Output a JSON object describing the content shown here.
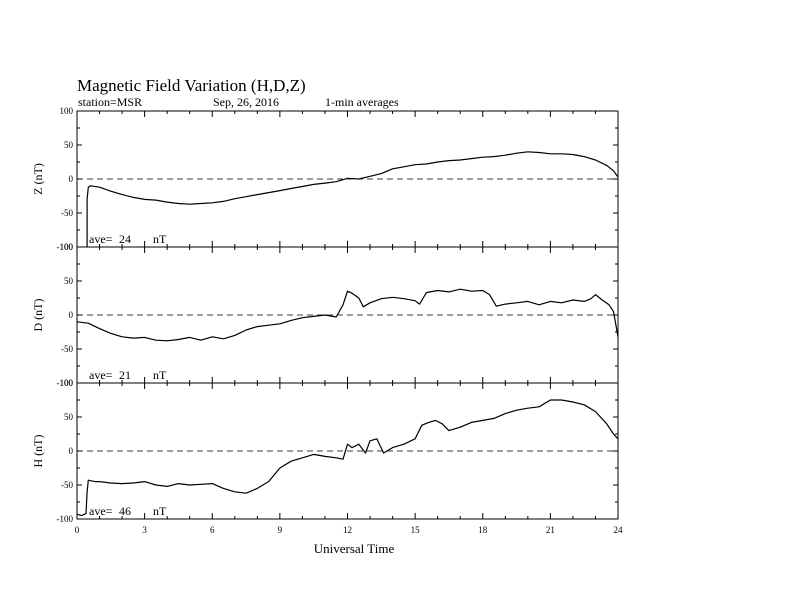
{
  "header": {
    "title": "Magnetic Field Variation (H,D,Z)",
    "station": "station=MSR",
    "date": "Sep, 26, 2016",
    "averaging": "1-min averages"
  },
  "colors": {
    "line": "#000000",
    "background": "#ffffff"
  },
  "chart_data": {
    "type": "line",
    "xlabel": "Universal Time",
    "xlim": [
      0,
      24
    ],
    "xticks": [
      "0",
      "3",
      "6",
      "9",
      "12",
      "15",
      "18",
      "21",
      "24"
    ],
    "panels": [
      {
        "ylabel": "Z (nT)",
        "ylim": [
          -100,
          100
        ],
        "yticks": [
          "100",
          "50",
          "0",
          "-50",
          "-100"
        ],
        "ave_text": "ave=",
        "ave_value": "24",
        "ave_unit": "nT",
        "zero_line": "dashed",
        "x": [
          0.45,
          0.45,
          0.5,
          0.6,
          1,
          1.5,
          2,
          2.5,
          3,
          3.5,
          4,
          4.5,
          5,
          5.5,
          6,
          6.5,
          7,
          7.5,
          8,
          8.5,
          9,
          9.5,
          10,
          10.5,
          11,
          11.5,
          12,
          12.5,
          13,
          13.5,
          14,
          14.5,
          15,
          15.5,
          16,
          16.5,
          17,
          17.5,
          18,
          18.5,
          19,
          19.5,
          20,
          20.5,
          21,
          21.5,
          22,
          22.5,
          23,
          23.5,
          23.8,
          24
        ],
        "y": [
          -100,
          -30,
          -12,
          -10,
          -12,
          -18,
          -23,
          -27,
          -30,
          -31,
          -34,
          -36,
          -37,
          -36,
          -35,
          -33,
          -29,
          -26,
          -23,
          -20,
          -17,
          -14,
          -11,
          -8,
          -6,
          -4,
          1,
          0,
          4,
          8,
          15,
          18,
          21,
          22,
          25,
          27,
          28,
          30,
          32,
          33,
          35,
          38,
          40,
          39,
          37,
          37,
          36,
          33,
          28,
          20,
          12,
          3
        ]
      },
      {
        "ylabel": "D (nT)",
        "ylim": [
          -100,
          100
        ],
        "yticks": [
          "100",
          "50",
          "0",
          "-50",
          "-100"
        ],
        "ave_text": "ave=",
        "ave_value": "21",
        "ave_unit": "nT",
        "zero_line": "dashed",
        "x": [
          0,
          0.5,
          1,
          1.5,
          2,
          2.5,
          3,
          3.5,
          4,
          4.5,
          5,
          5.5,
          6,
          6.5,
          7,
          7.5,
          8,
          8.5,
          9,
          9.5,
          10,
          10.5,
          11,
          11.5,
          11.8,
          12,
          12.2,
          12.5,
          12.7,
          13,
          13.5,
          14,
          14.5,
          15,
          15.2,
          15.5,
          16,
          16.5,
          17,
          17.5,
          18,
          18.3,
          18.6,
          19,
          19.5,
          20,
          20.5,
          21,
          21.5,
          22,
          22.5,
          22.8,
          23,
          23.3,
          23.6,
          23.8,
          24
        ],
        "y": [
          -10,
          -12,
          -20,
          -27,
          -32,
          -34,
          -33,
          -37,
          -38,
          -36,
          -33,
          -37,
          -32,
          -35,
          -30,
          -22,
          -17,
          -15,
          -13,
          -8,
          -4,
          -2,
          0,
          -3,
          15,
          35,
          32,
          25,
          12,
          18,
          24,
          26,
          24,
          21,
          16,
          33,
          36,
          34,
          38,
          35,
          36,
          30,
          13,
          16,
          18,
          20,
          15,
          20,
          18,
          22,
          20,
          24,
          30,
          22,
          15,
          5,
          -32
        ]
      },
      {
        "ylabel": "H (nT)",
        "ylim": [
          -100,
          100
        ],
        "yticks": [
          "100",
          "50",
          "0",
          "-50",
          "-100"
        ],
        "ave_text": "ave=",
        "ave_value": "46",
        "ave_unit": "nT",
        "zero_line": "dashed",
        "x": [
          0,
          0.2,
          0.4,
          0.45,
          0.5,
          0.8,
          1,
          1.5,
          2,
          2.5,
          3,
          3.5,
          4,
          4.5,
          5,
          5.5,
          6,
          6.5,
          7,
          7.5,
          8,
          8.5,
          9,
          9.5,
          10,
          10.5,
          11,
          11.5,
          11.8,
          12,
          12.2,
          12.5,
          12.8,
          13,
          13.3,
          13.6,
          14,
          14.5,
          15,
          15.3,
          15.6,
          15.9,
          16.2,
          16.5,
          17,
          17.5,
          18,
          18.5,
          19,
          19.5,
          20,
          20.5,
          21,
          21.5,
          22,
          22.5,
          23,
          23.5,
          23.8,
          24
        ],
        "y": [
          -93,
          -95,
          -92,
          -60,
          -43,
          -45,
          -45,
          -47,
          -48,
          -47,
          -45,
          -50,
          -52,
          -48,
          -50,
          -49,
          -48,
          -55,
          -60,
          -62,
          -55,
          -45,
          -25,
          -15,
          -10,
          -5,
          -8,
          -10,
          -12,
          10,
          5,
          10,
          -3,
          15,
          18,
          -3,
          5,
          10,
          18,
          38,
          42,
          45,
          40,
          30,
          35,
          42,
          45,
          48,
          55,
          60,
          63,
          65,
          75,
          75,
          72,
          68,
          58,
          40,
          25,
          18
        ]
      }
    ]
  }
}
